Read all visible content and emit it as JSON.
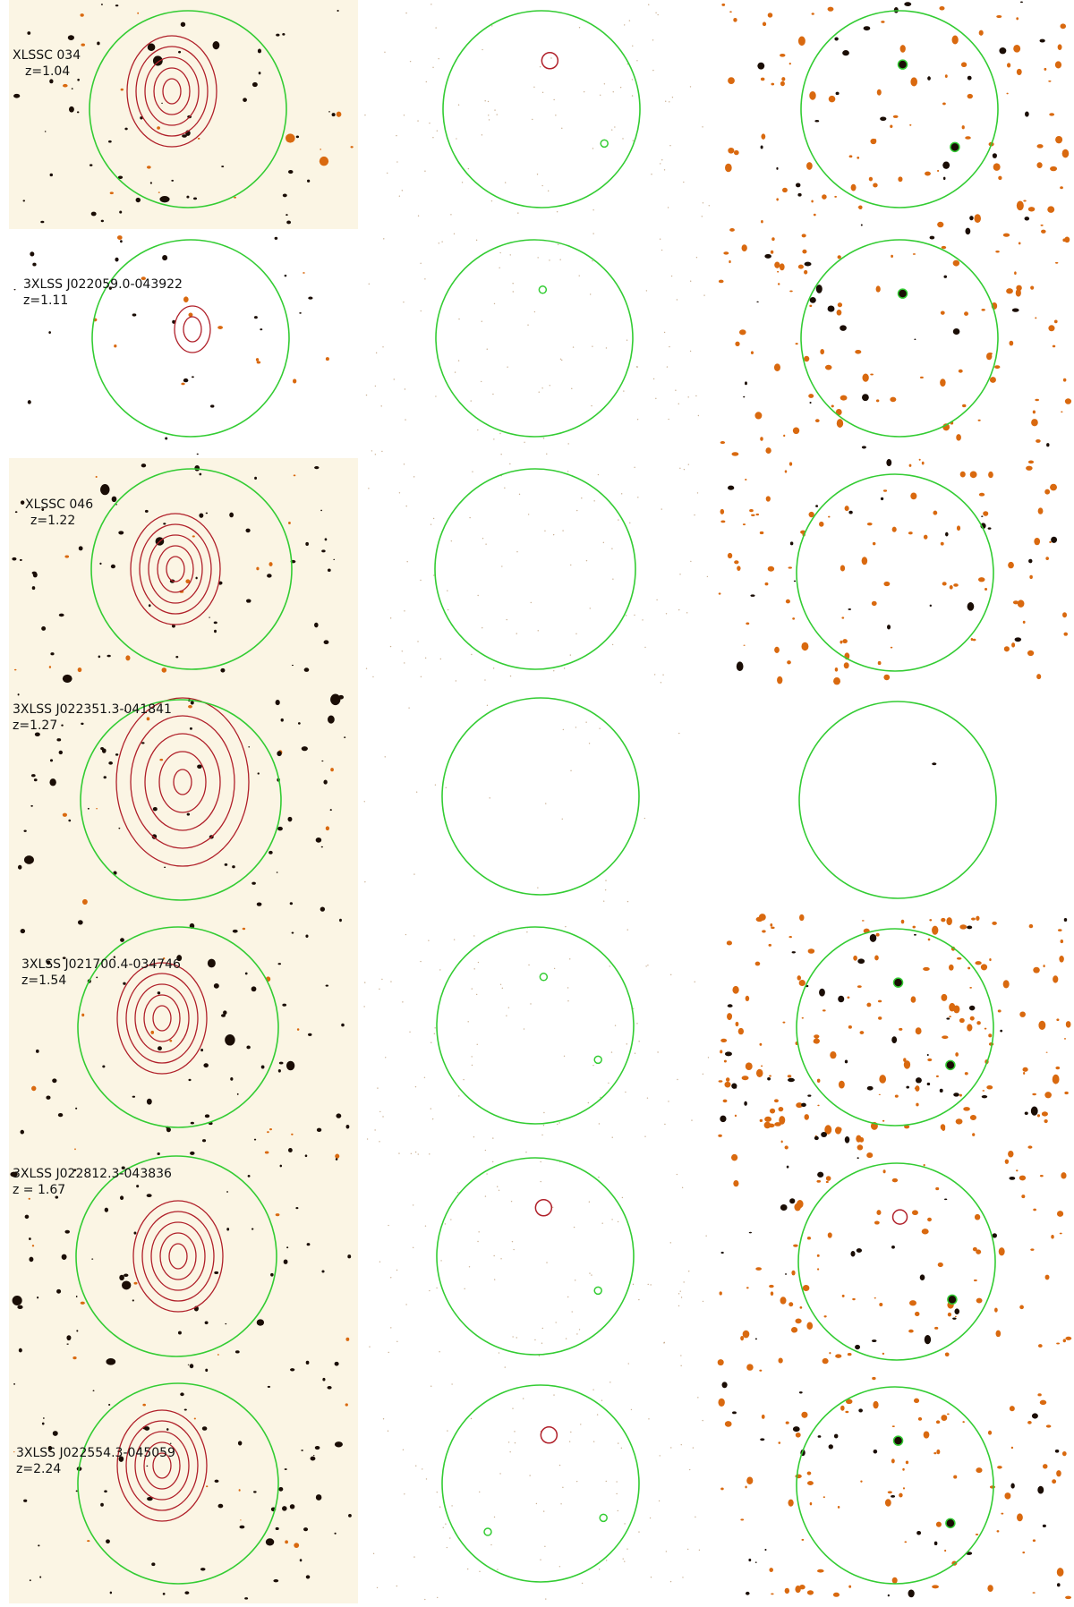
{
  "figure": {
    "columns": [
      "optical",
      "xray",
      "infrared"
    ],
    "colors": {
      "background_optical": "#fbf5e4",
      "background_white": "#ffffff",
      "aperture_circle": "#33cc33",
      "contour": "#b0202a",
      "source_dark": "#1a0d05",
      "source_orange": "#d9690f",
      "label_text": "#111111"
    },
    "rows": [
      {
        "name_line": "XLSSC 034",
        "z_line": "z=1.04",
        "optical_bg": "cream",
        "xray_marks": [
          "red-ring",
          "green-ring"
        ],
        "ir_marks": [
          "dark-ring",
          "dark-ring"
        ]
      },
      {
        "name_line": "3XLSS J022059.0-043922",
        "z_line": "z=1.11",
        "optical_bg": "white",
        "xray_marks": [
          "green-ring"
        ],
        "ir_marks": [
          "dark-ring"
        ]
      },
      {
        "name_line": "XLSSC 046",
        "z_line": "z=1.22",
        "optical_bg": "cream",
        "xray_marks": [],
        "ir_marks": []
      },
      {
        "name_line": "3XLSS J022351.3-041841",
        "z_line": "z=1.27",
        "optical_bg": "cream",
        "xray_marks": [],
        "ir_marks": []
      },
      {
        "name_line": "3XLSS J021700.4-034746",
        "z_line": "z=1.54",
        "optical_bg": "cream",
        "xray_marks": [
          "green-ring",
          "green-ring"
        ],
        "ir_marks": [
          "dark-ring",
          "dark-ring"
        ]
      },
      {
        "name_line": "3XLSS J022812.3-043836",
        "z_line": "z = 1.67",
        "optical_bg": "cream",
        "xray_marks": [
          "red-ring",
          "green-ring"
        ],
        "ir_marks": [
          "red-ring",
          "dark-ring"
        ]
      },
      {
        "name_line": "3XLSS J022554.3-045059",
        "z_line": "z=2.24",
        "optical_bg": "cream",
        "xray_marks": [
          "red-ring",
          "green-ring",
          "green-ring"
        ],
        "ir_marks": [
          "dark-ring",
          "dark-ring"
        ]
      }
    ]
  }
}
